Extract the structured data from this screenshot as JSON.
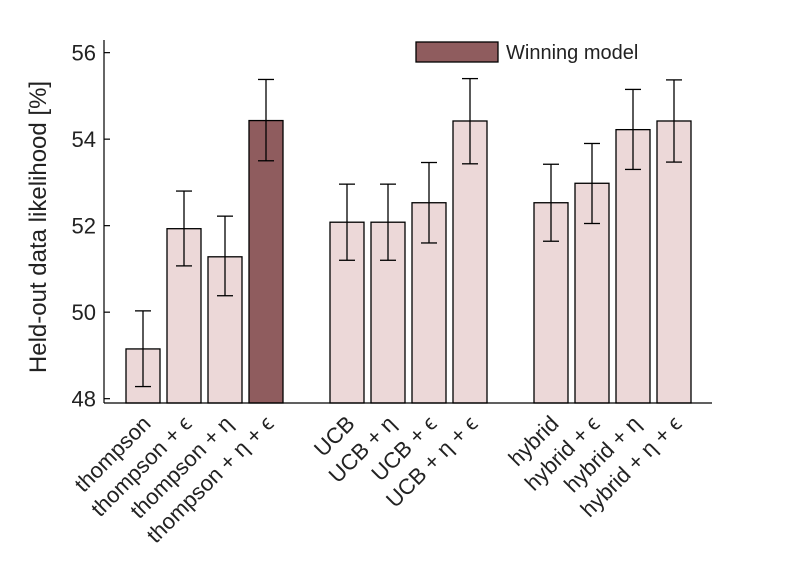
{
  "chart_data": {
    "type": "bar",
    "ylabel": "Held-out data likelihood [%]",
    "xlabel": "",
    "title": "",
    "ylim": [
      47.9,
      56.2
    ],
    "yticks": [
      48,
      50,
      52,
      54,
      56
    ],
    "groups": [
      {
        "bars": [
          {
            "label": "thompson",
            "value": 49.15,
            "err_low": 48.28,
            "err_high": 50.03
          },
          {
            "label": "thompson + ϵ",
            "value": 51.93,
            "err_low": 51.07,
            "err_high": 52.8
          },
          {
            "label": "thompson + η",
            "value": 51.28,
            "err_low": 50.38,
            "err_high": 52.22
          },
          {
            "label": "thompson + η + ϵ",
            "value": 54.43,
            "err_low": 53.5,
            "err_high": 55.38,
            "winning": true
          }
        ]
      },
      {
        "bars": [
          {
            "label": "UCB",
            "value": 52.08,
            "err_low": 51.2,
            "err_high": 52.96
          },
          {
            "label": "UCB + η",
            "value": 52.08,
            "err_low": 51.2,
            "err_high": 52.96
          },
          {
            "label": "UCB + ϵ",
            "value": 52.53,
            "err_low": 51.6,
            "err_high": 53.46
          },
          {
            "label": "UCB + η + ϵ",
            "value": 54.42,
            "err_low": 53.43,
            "err_high": 55.4
          }
        ]
      },
      {
        "bars": [
          {
            "label": "hybrid",
            "value": 52.53,
            "err_low": 51.64,
            "err_high": 53.42
          },
          {
            "label": "hybrid + ϵ",
            "value": 52.98,
            "err_low": 52.05,
            "err_high": 53.9
          },
          {
            "label": "hybrid + η",
            "value": 54.22,
            "err_low": 53.3,
            "err_high": 55.15
          },
          {
            "label": "hybrid + η + ϵ",
            "value": 54.42,
            "err_low": 53.47,
            "err_high": 55.37
          }
        ]
      }
    ],
    "legend": {
      "label": "Winning model",
      "position": "top-right"
    },
    "colors": {
      "bar": "#ecd8d8",
      "winning": "#8f5c5e",
      "edge": "#000000"
    }
  }
}
